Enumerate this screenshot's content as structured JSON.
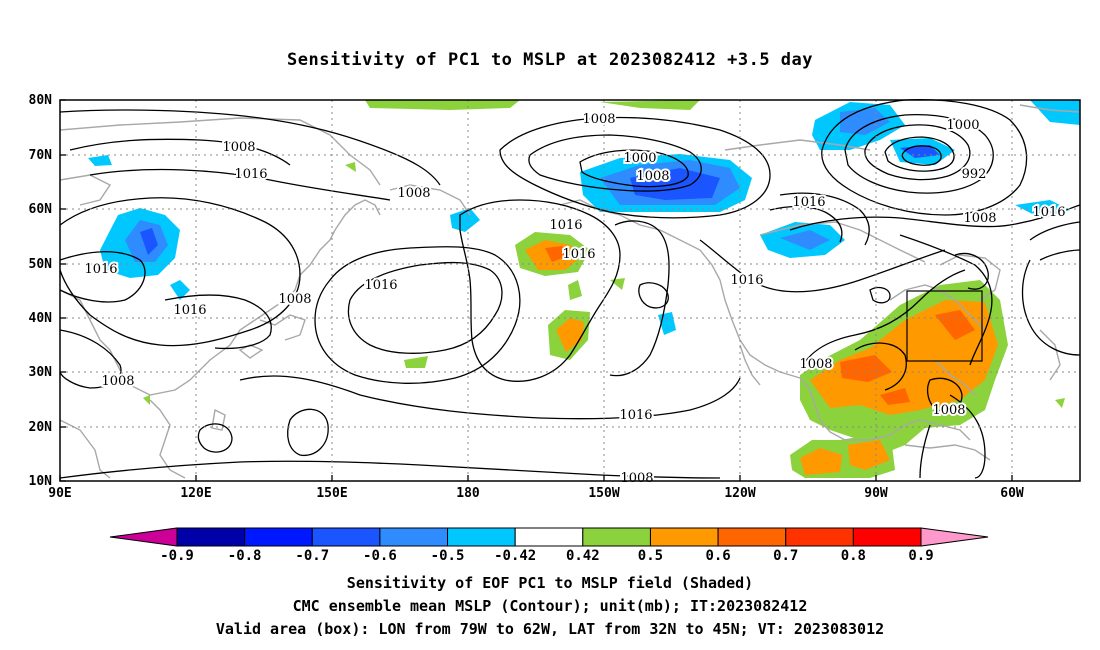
{
  "title": "Sensitivity of PC1 to MSLP at 2023082412 +3.5 day",
  "lat_labels": [
    "80N",
    "70N",
    "60N",
    "50N",
    "40N",
    "30N",
    "20N",
    "10N"
  ],
  "lon_labels": [
    "90E",
    "120E",
    "150E",
    "180",
    "150W",
    "120W",
    "90W",
    "60W"
  ],
  "contour_labels": {
    "c1008_a": "1008",
    "c1008_b": "1008",
    "c1008_c": "1008",
    "c1008_d": "1008",
    "c1008_e": "1008",
    "c1008_f": "1008",
    "c1008_g": "1008",
    "c1008_h": "1008",
    "c1008_i": "1008",
    "c1008_j": "1008",
    "c1016_a": "1016",
    "c1016_b": "1016",
    "c1016_c": "1016",
    "c1016_d": "1016",
    "c1016_e": "1016",
    "c1016_f": "1016",
    "c1016_g": "1016",
    "c1016_h": "1016",
    "c1016_i": "1016",
    "c1016_j": "1016",
    "c1000_a": "1000",
    "c1000_b": "1000",
    "c992": "992"
  },
  "colorbar": {
    "labels": [
      "-0.9",
      "-0.8",
      "-0.7",
      "-0.6",
      "-0.5",
      "-0.42",
      "0.42",
      "0.5",
      "0.6",
      "0.7",
      "0.8",
      "0.9"
    ],
    "colors": [
      "#0000a8",
      "#0018ff",
      "#1a55ff",
      "#2f8cff",
      "#00c8ff",
      "#ffffff",
      "#8cd23c",
      "#ff9900",
      "#ff6600",
      "#ff3300",
      "#ff0000"
    ],
    "low_end_color": "#cc0099",
    "high_end_color": "#ff99cc"
  },
  "captions": {
    "line1": "Sensitivity of EOF PC1 to MSLP field (Shaded)",
    "line2": "CMC ensemble mean MSLP (Contour); unit(mb); IT:2023082412",
    "line3": "Valid area (box): LON from 79W to 62W, LAT from 32N to 45N; VT: 2023083012"
  }
}
